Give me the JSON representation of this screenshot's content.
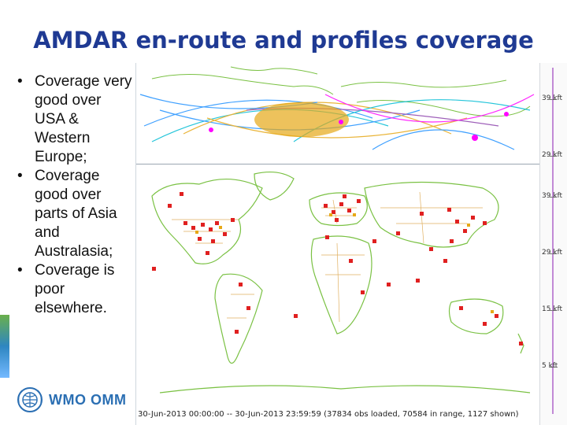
{
  "slide": {
    "title": "AMDAR en-route and profiles coverage",
    "bullets": [
      "Coverage very good over USA & Western Europe;",
      "Coverage good over parts of Asia and Australasia;",
      "Coverage is poor elsewhere."
    ]
  },
  "logo": {
    "text": "WMO OMM",
    "emblem_icon": "wmo-emblem-icon"
  },
  "map": {
    "altitude_labels": [
      "39 kft",
      "29 kft",
      "39 kft",
      "29 kft",
      "15 kft",
      "5 kft"
    ],
    "caption": "30-Jun-2013 00:00:00 -- 30-Jun-2013 23:59:59 (37834 obs loaded, 70584 in range, 1127 shown)",
    "colors": {
      "coastline": "#7ac143",
      "borders": "#e0b060",
      "profiles": "#e02020",
      "tracks": [
        "#1e90ff",
        "#00bcd4",
        "#e6a817",
        "#8e44ad",
        "#ff00ff"
      ]
    }
  }
}
